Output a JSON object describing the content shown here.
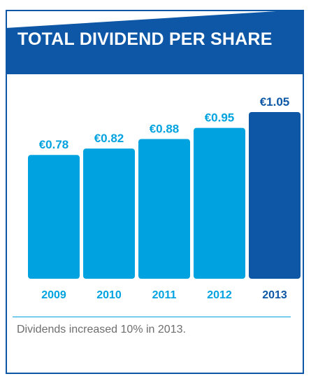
{
  "colors": {
    "header": "#0d57a6",
    "bar": "#00a3e0",
    "highlight_bar": "#0d57a6",
    "rule": "#00a3e0",
    "caption": "#6e6e6e"
  },
  "caption": "Dividends increased 10% in 2013.",
  "chart_data": {
    "type": "bar",
    "title": "TOTAL DIVIDEND PER SHARE",
    "categories": [
      "2009",
      "2010",
      "2011",
      "2012",
      "2013"
    ],
    "values": [
      0.78,
      0.82,
      0.88,
      0.95,
      1.05
    ],
    "value_labels": [
      "€0.78",
      "€0.82",
      "€0.88",
      "€0.95",
      "€1.05"
    ],
    "highlight_index": 4,
    "ylim": [
      0,
      1.05
    ],
    "grid": false,
    "legend": "none",
    "xlabel": "",
    "ylabel": ""
  }
}
